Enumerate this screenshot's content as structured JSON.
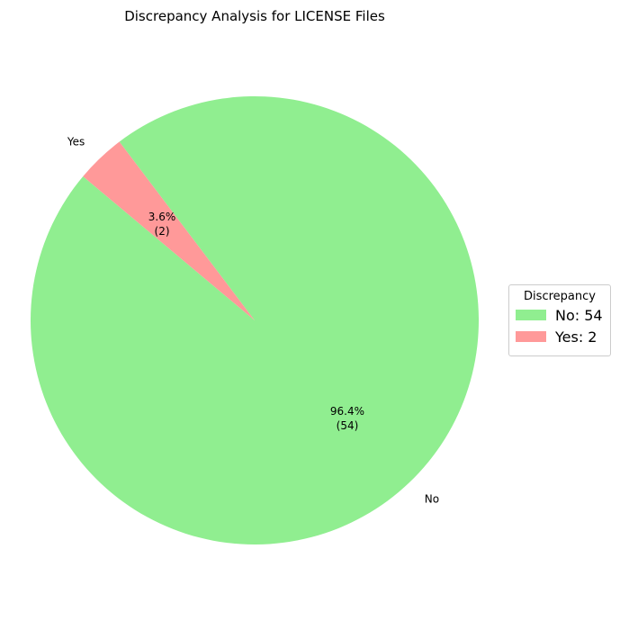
{
  "chart_data": {
    "type": "pie",
    "title": "Discrepancy Analysis for LICENSE Files",
    "slices": [
      {
        "label": "No",
        "value": 54,
        "percent_label": "96.4%",
        "count_label": "(54)",
        "color": "#90ee90"
      },
      {
        "label": "Yes",
        "value": 2,
        "percent_label": "3.6%",
        "count_label": "(2)",
        "color": "#ff9999"
      }
    ],
    "legend": {
      "title": "Discrepancy",
      "placement": "right",
      "entries": [
        "No: 54",
        "Yes: 2"
      ]
    }
  }
}
